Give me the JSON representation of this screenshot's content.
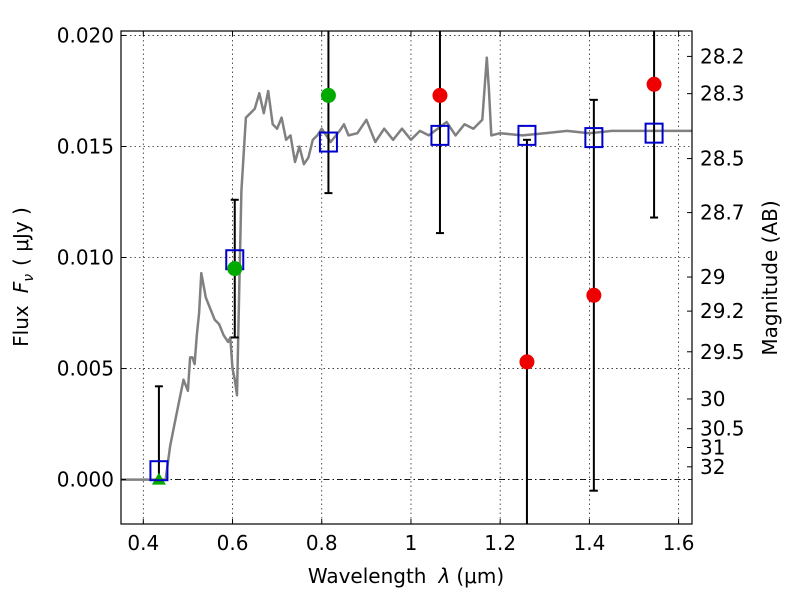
{
  "chart_data": {
    "type": "scatter",
    "xlabel_text": "Wavelength",
    "xlabel_symbol": "λ",
    "xlabel_unit": "(μm)",
    "ylabel_text": "Flux",
    "ylabel_symbol": "F",
    "ylabel_sub": "ν",
    "ylabel_unit": "( μJy )",
    "y2label": "Magnitude (AB)",
    "xlim": [
      0.35,
      1.63
    ],
    "ylim": [
      -0.002,
      0.0202
    ],
    "grid": true,
    "xticks": [
      0.4,
      0.6,
      0.8,
      1.0,
      1.2,
      1.4,
      1.6
    ],
    "xtick_labels": [
      "0.4",
      "0.6",
      "0.8",
      "1",
      "1.2",
      "1.4",
      "1.6"
    ],
    "yticks": [
      0.0,
      0.005,
      0.01,
      0.015,
      0.02
    ],
    "ytick_labels": [
      "0.000",
      "0.005",
      "0.010",
      "0.015",
      "0.020"
    ],
    "mag_ticks": [
      28.2,
      28.3,
      28.5,
      28.7,
      29,
      29.2,
      29.5,
      30,
      30.5,
      31,
      32
    ],
    "mag_tick_labels": [
      "28.2",
      "28.3",
      "28.5",
      "28.7",
      "29",
      "29.2",
      "29.5",
      "30",
      "30.5",
      "31",
      "32"
    ],
    "zero_line": 0.0,
    "colors": {
      "model": "#808080",
      "model_photometry": "#0000cc",
      "observed_blue": "#00aa00",
      "observed_red": "#ee0000",
      "upper_limit": "#00aa00",
      "errorbar": "#000000"
    },
    "model_spectrum": {
      "x": [
        0.35,
        0.45,
        0.46,
        0.47,
        0.48,
        0.49,
        0.5,
        0.505,
        0.51,
        0.515,
        0.52,
        0.525,
        0.53,
        0.54,
        0.55,
        0.56,
        0.57,
        0.58,
        0.59,
        0.595,
        0.6,
        0.605,
        0.61,
        0.615,
        0.62,
        0.63,
        0.64,
        0.65,
        0.66,
        0.67,
        0.68,
        0.69,
        0.7,
        0.71,
        0.72,
        0.73,
        0.74,
        0.75,
        0.76,
        0.77,
        0.78,
        0.79,
        0.8,
        0.82,
        0.84,
        0.85,
        0.86,
        0.88,
        0.9,
        0.92,
        0.94,
        0.96,
        0.98,
        1.0,
        1.02,
        1.04,
        1.06,
        1.08,
        1.1,
        1.12,
        1.14,
        1.16,
        1.17,
        1.175,
        1.18,
        1.2,
        1.25,
        1.3,
        1.35,
        1.4,
        1.45,
        1.5,
        1.55,
        1.6,
        1.63
      ],
      "y": [
        0.0,
        0.0,
        0.0015,
        0.0025,
        0.0035,
        0.0045,
        0.004,
        0.0055,
        0.0055,
        0.0052,
        0.0065,
        0.0075,
        0.0093,
        0.0082,
        0.0077,
        0.0072,
        0.007,
        0.0065,
        0.0062,
        0.0064,
        0.005,
        0.0045,
        0.0038,
        0.0085,
        0.013,
        0.0163,
        0.0165,
        0.0167,
        0.0174,
        0.0165,
        0.0175,
        0.016,
        0.0158,
        0.0163,
        0.0153,
        0.0155,
        0.0143,
        0.015,
        0.0142,
        0.0145,
        0.0153,
        0.0155,
        0.0158,
        0.0152,
        0.0157,
        0.016,
        0.0155,
        0.0156,
        0.0162,
        0.0152,
        0.0158,
        0.0153,
        0.0158,
        0.0153,
        0.0157,
        0.0155,
        0.0158,
        0.0161,
        0.0155,
        0.016,
        0.0158,
        0.0162,
        0.019,
        0.0175,
        0.0155,
        0.0156,
        0.0155,
        0.0156,
        0.0157,
        0.0156,
        0.0157,
        0.0157,
        0.0157,
        0.0157,
        0.0157
      ]
    },
    "model_photometry": {
      "x": [
        0.435,
        0.605,
        0.815,
        1.065,
        1.26,
        1.41,
        1.545
      ],
      "y": [
        0.0004,
        0.0099,
        0.0152,
        0.0155,
        0.0155,
        0.0154,
        0.0156
      ]
    },
    "observed_points": [
      {
        "x": 0.605,
        "y": 0.0095,
        "err": 0.0031,
        "color": "#00aa00"
      },
      {
        "x": 0.815,
        "y": 0.0173,
        "err": 0.0044,
        "color": "#00aa00"
      },
      {
        "x": 1.065,
        "y": 0.0173,
        "err": 0.0062,
        "color": "#ee0000"
      },
      {
        "x": 1.26,
        "y": 0.0053,
        "err": 0.01,
        "color": "#ee0000"
      },
      {
        "x": 1.41,
        "y": 0.0083,
        "err": 0.0088,
        "color": "#ee0000"
      },
      {
        "x": 1.545,
        "y": 0.0178,
        "err": 0.006,
        "color": "#ee0000"
      }
    ],
    "upper_limit_point": {
      "x": 0.435,
      "y": 0.0,
      "err_top": 0.0042
    }
  }
}
